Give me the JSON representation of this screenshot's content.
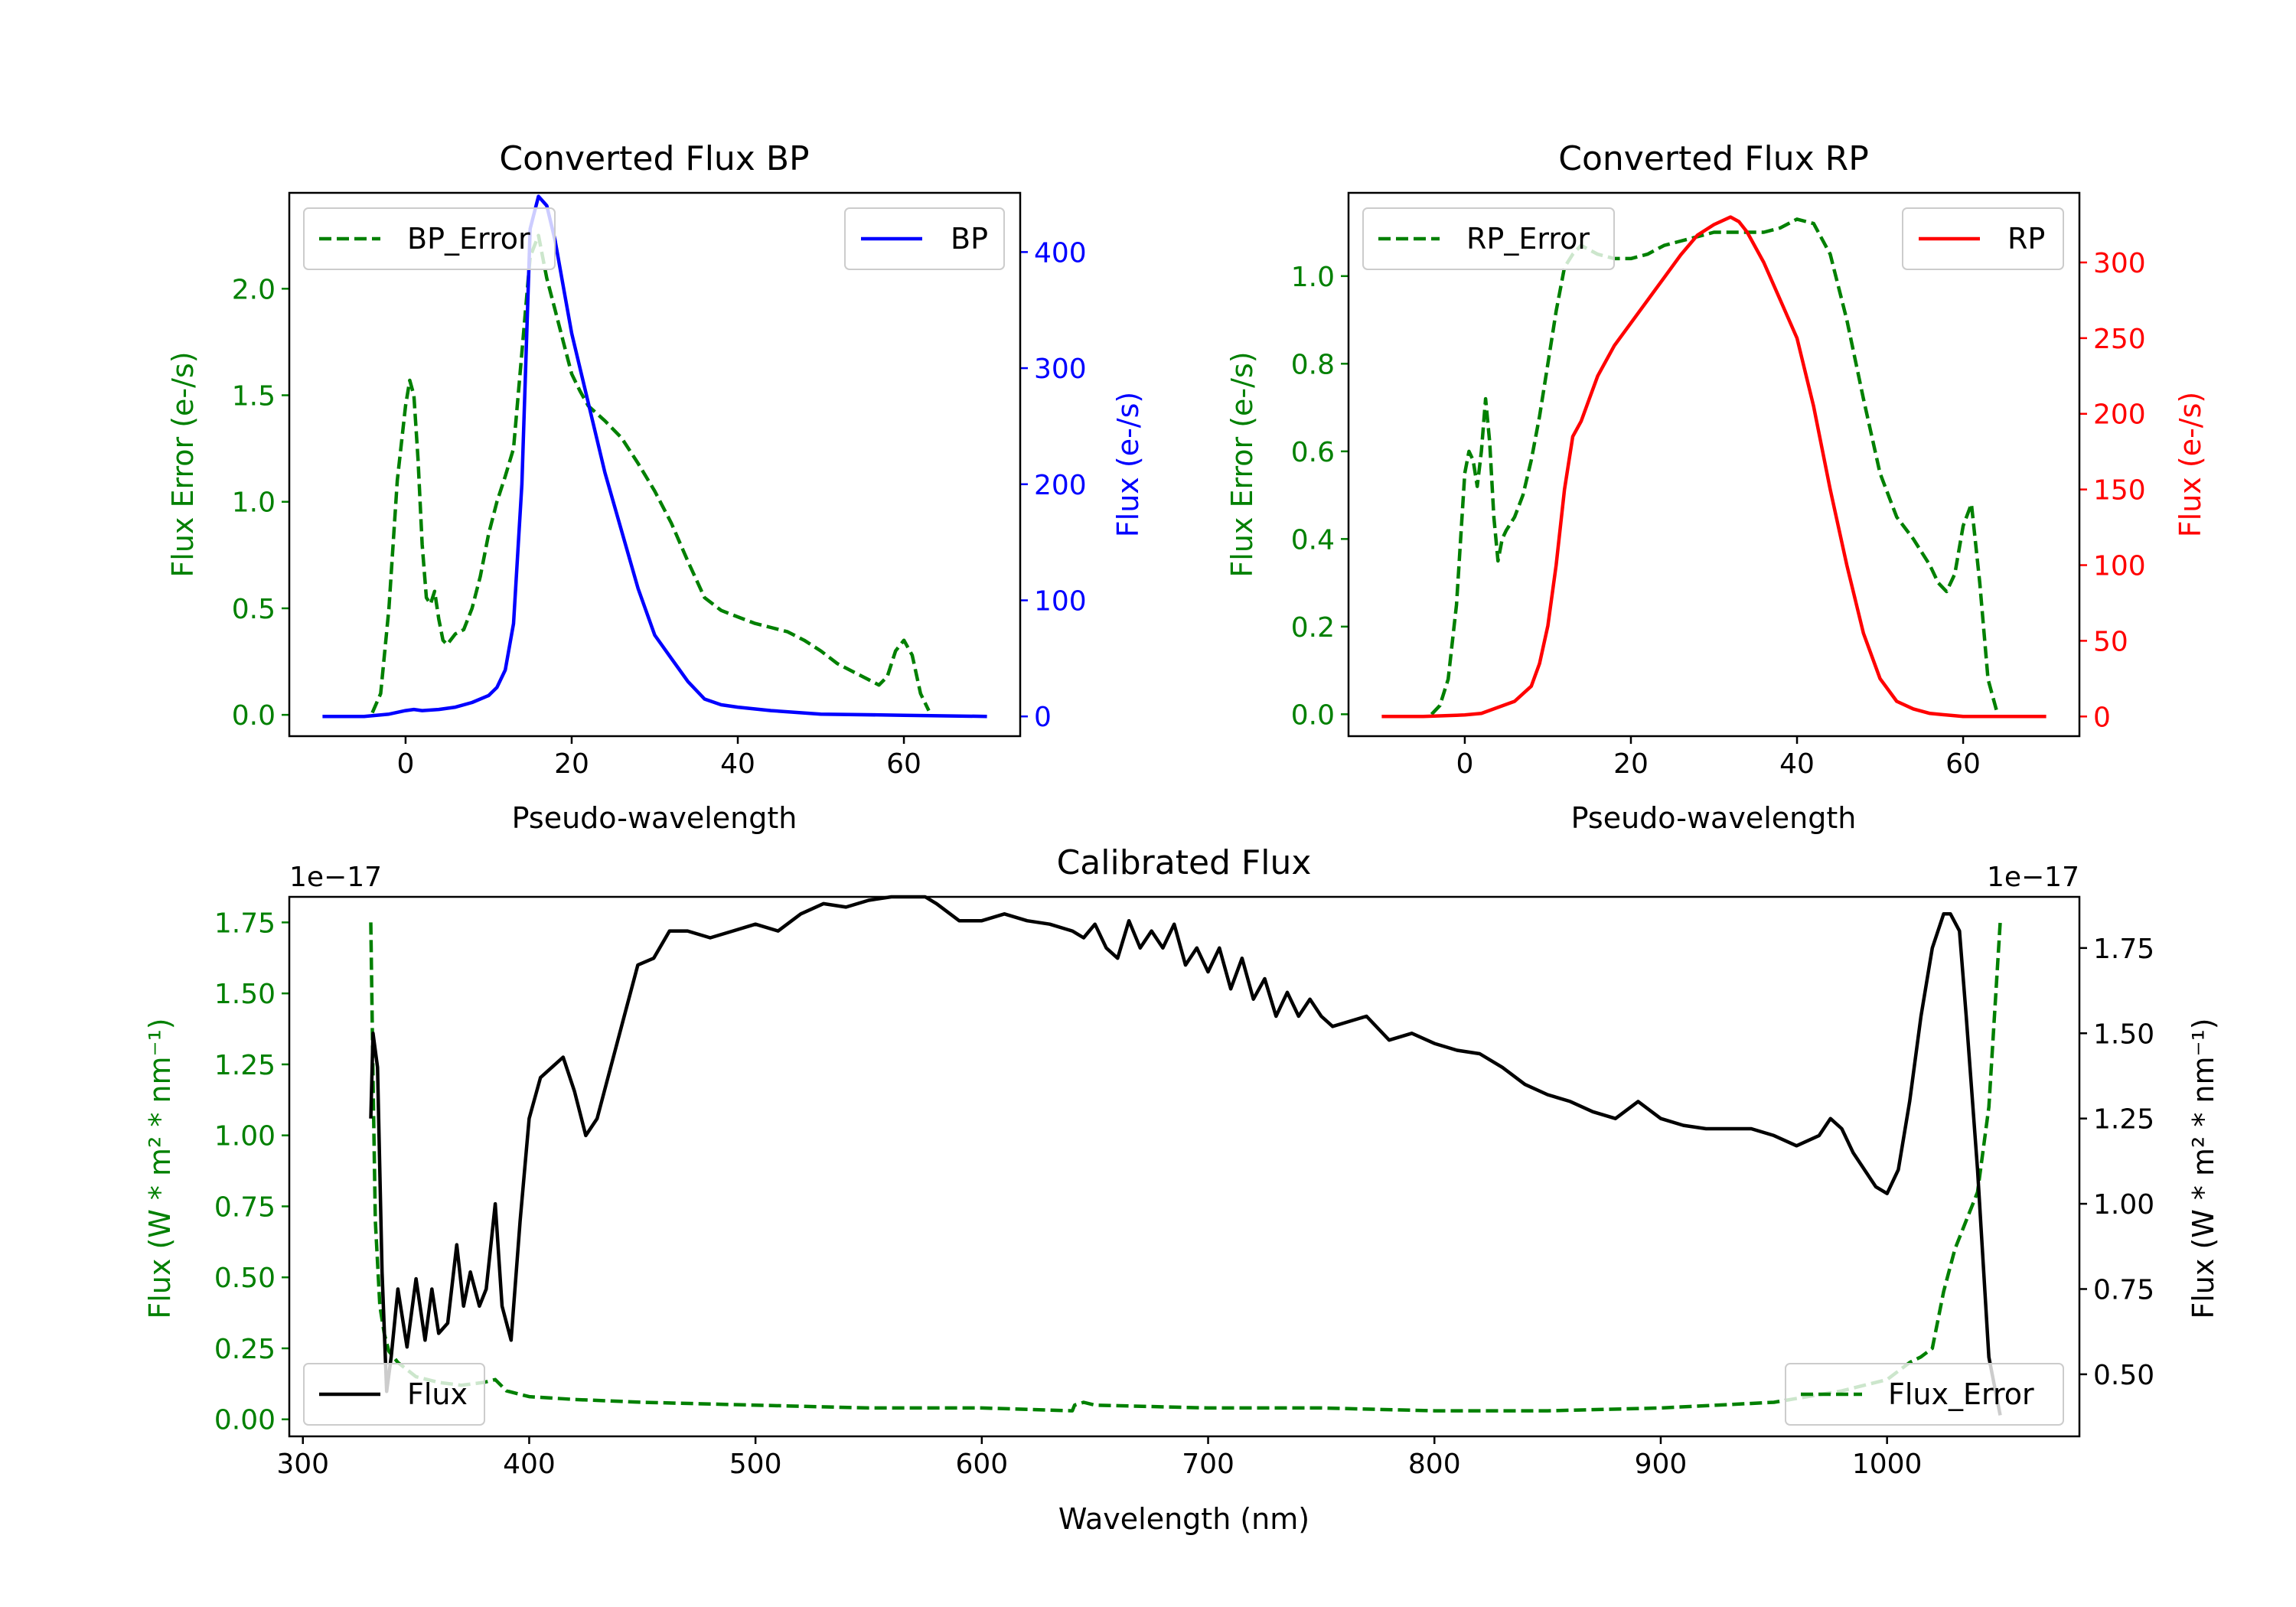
{
  "chart_data": [
    {
      "id": "bp",
      "type": "line",
      "title": "Converted Flux BP",
      "xlabel": "Pseudo-wavelength",
      "ylabel_left": "Flux Error (e-/s)",
      "ylabel_right": "Flux (e-/s)",
      "xlim": [
        -14,
        74
      ],
      "ylim_left": [
        -0.1,
        2.45
      ],
      "ylim_right": [
        -17,
        451
      ],
      "xticks": [
        0,
        20,
        40,
        60
      ],
      "yticks_left": [
        0.0,
        0.5,
        1.0,
        1.5,
        2.0
      ],
      "yticks_right": [
        0,
        100,
        200,
        300,
        400
      ],
      "colors": {
        "error": "#008000",
        "flux": "#0000ff"
      },
      "legend_left": "BP_Error",
      "legend_right": "BP",
      "series": [
        {
          "name": "BP_Error",
          "axis": "left",
          "style": "dashed",
          "color": "#008000",
          "x": [
            -4,
            -3,
            -2,
            -1,
            0,
            0.5,
            1,
            1.5,
            2,
            2.5,
            3,
            3.5,
            4,
            4.5,
            5,
            6,
            7,
            8,
            9,
            10,
            11,
            12,
            13,
            14,
            15,
            16,
            17,
            18,
            19,
            20,
            21,
            22,
            24,
            26,
            28,
            30,
            32,
            34,
            36,
            38,
            40,
            42,
            44,
            46,
            48,
            50,
            52,
            54,
            56,
            57,
            58,
            59,
            60,
            61,
            62,
            63
          ],
          "values": [
            0.01,
            0.1,
            0.5,
            1.1,
            1.45,
            1.57,
            1.5,
            1.2,
            0.8,
            0.55,
            0.52,
            0.58,
            0.45,
            0.35,
            0.33,
            0.38,
            0.4,
            0.5,
            0.65,
            0.85,
            1.0,
            1.12,
            1.25,
            1.7,
            2.15,
            2.25,
            2.05,
            1.9,
            1.75,
            1.6,
            1.52,
            1.45,
            1.38,
            1.3,
            1.18,
            1.05,
            0.9,
            0.72,
            0.55,
            0.49,
            0.46,
            0.43,
            0.41,
            0.39,
            0.35,
            0.3,
            0.24,
            0.2,
            0.16,
            0.14,
            0.18,
            0.3,
            0.35,
            0.28,
            0.1,
            0.02
          ]
        },
        {
          "name": "BP",
          "axis": "right",
          "style": "solid",
          "color": "#0000ff",
          "x": [
            -10,
            -5,
            -2,
            0,
            1,
            2,
            4,
            6,
            8,
            10,
            11,
            12,
            13,
            14,
            15,
            16,
            17,
            18,
            19,
            20,
            22,
            24,
            26,
            28,
            30,
            32,
            34,
            36,
            38,
            40,
            44,
            50,
            60,
            70
          ],
          "values": [
            0,
            0,
            2,
            5,
            6,
            5,
            6,
            8,
            12,
            18,
            25,
            40,
            80,
            200,
            420,
            448,
            440,
            410,
            370,
            330,
            270,
            210,
            160,
            110,
            70,
            50,
            30,
            15,
            10,
            8,
            5,
            2,
            1,
            0
          ]
        }
      ]
    },
    {
      "id": "rp",
      "type": "line",
      "title": "Converted Flux RP",
      "xlabel": "Pseudo-wavelength",
      "ylabel_left": "Flux Error (e-/s)",
      "ylabel_right": "Flux (e-/s)",
      "xlim": [
        -14,
        74
      ],
      "ylim_left": [
        -0.05,
        1.19
      ],
      "ylim_right": [
        -13,
        346
      ],
      "xticks": [
        0,
        20,
        40,
        60
      ],
      "yticks_left": [
        0.0,
        0.2,
        0.4,
        0.6,
        0.8,
        1.0
      ],
      "yticks_right": [
        0,
        50,
        100,
        150,
        200,
        250,
        300
      ],
      "colors": {
        "error": "#008000",
        "flux": "#ff0000"
      },
      "legend_left": "RP_Error",
      "legend_right": "RP",
      "series": [
        {
          "name": "RP_Error",
          "axis": "left",
          "style": "dashed",
          "color": "#008000",
          "x": [
            -4,
            -3,
            -2,
            -1,
            0,
            0.5,
            1,
            1.5,
            2,
            2.5,
            3,
            3.5,
            4,
            4.5,
            5,
            6,
            7,
            8,
            9,
            10,
            11,
            12,
            13,
            14,
            16,
            18,
            20,
            22,
            24,
            26,
            28,
            30,
            32,
            34,
            36,
            38,
            40,
            42,
            44,
            46,
            48,
            50,
            52,
            54,
            56,
            57,
            58,
            59,
            60,
            61,
            62,
            63,
            64
          ],
          "values": [
            0.0,
            0.02,
            0.08,
            0.25,
            0.55,
            0.6,
            0.58,
            0.52,
            0.6,
            0.72,
            0.62,
            0.45,
            0.35,
            0.4,
            0.42,
            0.45,
            0.5,
            0.58,
            0.68,
            0.8,
            0.92,
            1.02,
            1.05,
            1.07,
            1.05,
            1.04,
            1.04,
            1.05,
            1.07,
            1.08,
            1.09,
            1.1,
            1.1,
            1.1,
            1.1,
            1.11,
            1.13,
            1.12,
            1.05,
            0.9,
            0.72,
            0.55,
            0.45,
            0.4,
            0.34,
            0.3,
            0.28,
            0.32,
            0.43,
            0.48,
            0.3,
            0.08,
            0.01
          ]
        },
        {
          "name": "RP",
          "axis": "right",
          "style": "solid",
          "color": "#ff0000",
          "x": [
            -10,
            -5,
            0,
            2,
            4,
            6,
            8,
            9,
            10,
            11,
            12,
            13,
            14,
            15,
            16,
            18,
            20,
            22,
            24,
            26,
            28,
            30,
            32,
            33,
            34,
            36,
            38,
            40,
            42,
            44,
            46,
            48,
            50,
            52,
            54,
            56,
            60,
            65,
            70
          ],
          "values": [
            0,
            0,
            1,
            2,
            6,
            10,
            20,
            35,
            60,
            100,
            150,
            185,
            195,
            210,
            225,
            245,
            260,
            275,
            290,
            305,
            318,
            325,
            330,
            327,
            320,
            300,
            275,
            250,
            205,
            150,
            100,
            55,
            25,
            10,
            5,
            2,
            0,
            0,
            0
          ]
        }
      ]
    },
    {
      "id": "calibrated",
      "type": "line",
      "title": "Calibrated Flux",
      "xlabel": "Wavelength (nm)",
      "ylabel_left": "Flux (W * m² * nm⁻¹)",
      "ylabel_right": "Flux (W * m² * nm⁻¹)",
      "offset_left": "1e−17",
      "offset_right": "1e−17",
      "xlim": [
        294,
        1085
      ],
      "ylim_left": [
        -0.06,
        1.84
      ],
      "ylim_right": [
        0.318,
        1.9
      ],
      "xticks": [
        300,
        400,
        500,
        600,
        700,
        800,
        900,
        1000
      ],
      "yticks_left": [
        0.0,
        0.25,
        0.5,
        0.75,
        1.0,
        1.25,
        1.5,
        1.75
      ],
      "yticks_right": [
        0.5,
        0.75,
        1.0,
        1.25,
        1.5,
        1.75
      ],
      "colors": {
        "error": "#008000",
        "flux": "#000000"
      },
      "legend_left": "Flux",
      "legend_right": "Flux_Error",
      "series": [
        {
          "name": "Flux_Error",
          "axis": "left",
          "style": "dashed",
          "color": "#008000",
          "x": [
            330,
            331,
            332,
            334,
            336,
            338,
            342,
            350,
            360,
            370,
            380,
            385,
            390,
            400,
            420,
            450,
            500,
            550,
            600,
            640,
            641,
            645,
            650,
            700,
            750,
            800,
            850,
            900,
            950,
            980,
            1000,
            1010,
            1015,
            1020,
            1025,
            1030,
            1035,
            1040,
            1045,
            1050
          ],
          "values": [
            1.75,
            1.2,
            0.7,
            0.4,
            0.3,
            0.24,
            0.2,
            0.15,
            0.13,
            0.12,
            0.13,
            0.14,
            0.1,
            0.08,
            0.07,
            0.06,
            0.05,
            0.04,
            0.04,
            0.03,
            0.05,
            0.06,
            0.05,
            0.04,
            0.04,
            0.03,
            0.03,
            0.04,
            0.06,
            0.1,
            0.14,
            0.2,
            0.22,
            0.25,
            0.45,
            0.6,
            0.7,
            0.8,
            1.1,
            1.75
          ]
        },
        {
          "name": "Flux",
          "axis": "right",
          "style": "solid",
          "color": "#000000",
          "x": [
            330,
            331,
            333,
            335,
            337,
            339,
            342,
            346,
            350,
            354,
            357,
            360,
            364,
            368,
            371,
            374,
            378,
            381,
            385,
            388,
            392,
            396,
            400,
            405,
            410,
            415,
            420,
            425,
            430,
            436,
            442,
            448,
            455,
            462,
            470,
            480,
            490,
            500,
            510,
            520,
            530,
            540,
            550,
            560,
            570,
            575,
            580,
            590,
            600,
            610,
            620,
            630,
            640,
            645,
            650,
            655,
            660,
            665,
            670,
            675,
            680,
            685,
            690,
            695,
            700,
            705,
            710,
            715,
            720,
            725,
            730,
            735,
            740,
            745,
            750,
            755,
            760,
            770,
            780,
            790,
            800,
            810,
            820,
            830,
            840,
            850,
            860,
            870,
            880,
            890,
            900,
            910,
            920,
            930,
            940,
            950,
            960,
            970,
            975,
            980,
            985,
            990,
            995,
            1000,
            1005,
            1010,
            1015,
            1020,
            1025,
            1028,
            1032,
            1035,
            1040,
            1045,
            1050
          ],
          "values": [
            1.25,
            1.5,
            1.4,
            0.8,
            0.45,
            0.55,
            0.75,
            0.58,
            0.78,
            0.6,
            0.75,
            0.62,
            0.65,
            0.88,
            0.7,
            0.8,
            0.7,
            0.75,
            1.0,
            0.7,
            0.6,
            0.95,
            1.25,
            1.37,
            1.4,
            1.43,
            1.33,
            1.2,
            1.25,
            1.4,
            1.55,
            1.7,
            1.72,
            1.8,
            1.8,
            1.78,
            1.8,
            1.82,
            1.8,
            1.85,
            1.88,
            1.87,
            1.89,
            1.9,
            1.9,
            1.9,
            1.88,
            1.83,
            1.83,
            1.85,
            1.83,
            1.82,
            1.8,
            1.78,
            1.82,
            1.75,
            1.72,
            1.83,
            1.75,
            1.8,
            1.75,
            1.82,
            1.7,
            1.75,
            1.68,
            1.75,
            1.63,
            1.72,
            1.6,
            1.66,
            1.55,
            1.62,
            1.55,
            1.6,
            1.55,
            1.52,
            1.53,
            1.55,
            1.48,
            1.5,
            1.47,
            1.45,
            1.44,
            1.4,
            1.35,
            1.32,
            1.3,
            1.27,
            1.25,
            1.3,
            1.25,
            1.23,
            1.22,
            1.22,
            1.22,
            1.2,
            1.17,
            1.2,
            1.25,
            1.22,
            1.15,
            1.1,
            1.05,
            1.03,
            1.1,
            1.3,
            1.55,
            1.75,
            1.85,
            1.85,
            1.8,
            1.55,
            1.1,
            0.55,
            0.38
          ]
        }
      ]
    }
  ]
}
